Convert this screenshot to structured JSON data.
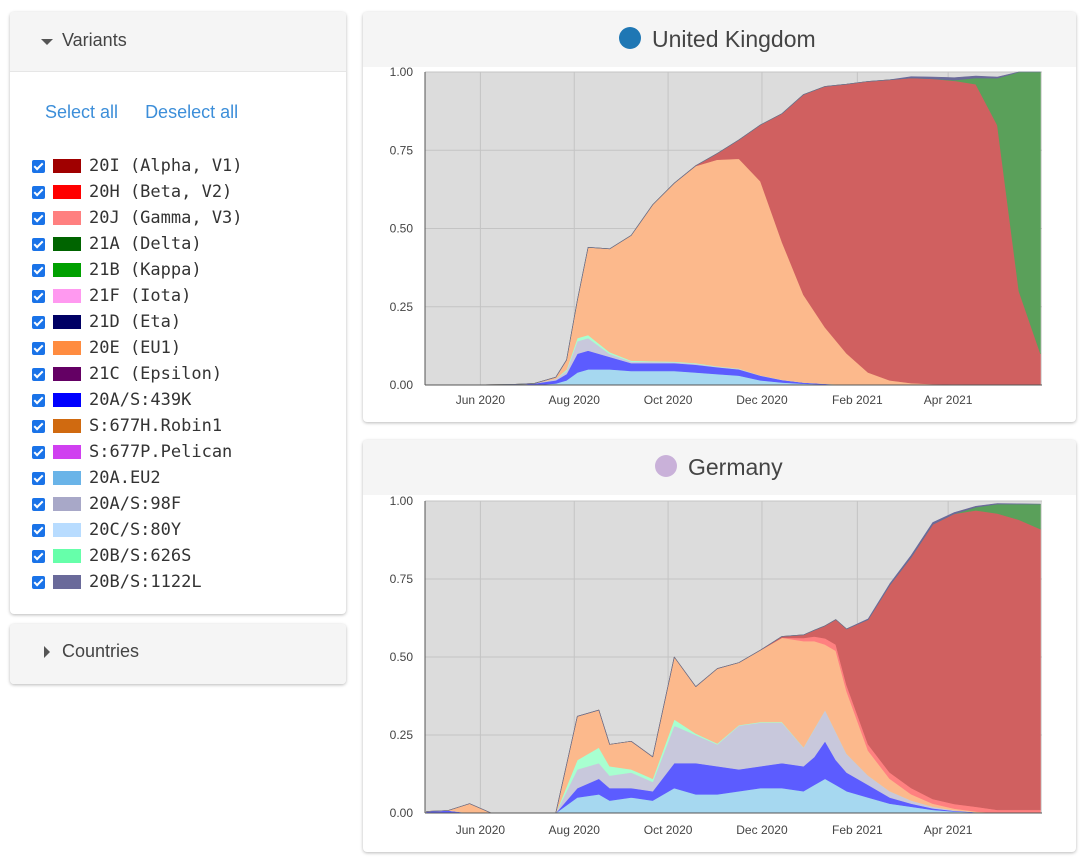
{
  "variants_panel": {
    "title": "Variants",
    "select_all": "Select all",
    "deselect_all": "Deselect all",
    "items": [
      {
        "label": "20I (Alpha, V1)",
        "color": "#a00000",
        "checked": true
      },
      {
        "label": "20H (Beta, V2)",
        "color": "#ff0000",
        "checked": true
      },
      {
        "label": "20J (Gamma, V3)",
        "color": "#ff8080",
        "checked": true
      },
      {
        "label": "21A (Delta)",
        "color": "#006400",
        "checked": true
      },
      {
        "label": "21B (Kappa)",
        "color": "#00a000",
        "checked": true
      },
      {
        "label": "21F (Iota)",
        "color": "#ff99f0",
        "checked": true
      },
      {
        "label": "21D (Eta)",
        "color": "#000064",
        "checked": true
      },
      {
        "label": "20E (EU1)",
        "color": "#ff8c40",
        "checked": true
      },
      {
        "label": "21C (Epsilon)",
        "color": "#640064",
        "checked": true
      },
      {
        "label": "20A/S:439K",
        "color": "#0000ff",
        "checked": true
      },
      {
        "label": "S:677H.Robin1",
        "color": "#d06a10",
        "checked": true
      },
      {
        "label": "S:677P.Pelican",
        "color": "#d040f0",
        "checked": true
      },
      {
        "label": "20A.EU2",
        "color": "#6ab4e8",
        "checked": true
      },
      {
        "label": "20A/S:98F",
        "color": "#a8a8c8",
        "checked": true
      },
      {
        "label": "20C/S:80Y",
        "color": "#b8dcff",
        "checked": true
      },
      {
        "label": "20B/S:626S",
        "color": "#66ffaa",
        "checked": true
      },
      {
        "label": "20B/S:1122L",
        "color": "#6a6a9a",
        "checked": true
      }
    ]
  },
  "countries_panel": {
    "title": "Countries"
  },
  "chart_data": [
    {
      "type": "area",
      "title": "United Kingdom",
      "title_dot_color": "#1f77b4",
      "xlabel": "",
      "ylabel": "",
      "ylim": [
        0,
        1
      ],
      "yticks": [
        "0.00",
        "0.25",
        "0.50",
        "0.75",
        "1.00"
      ],
      "xtick_labels": [
        "Jun 2020",
        "Aug 2020",
        "Oct 2020",
        "Dec 2020",
        "Feb 2021",
        "Apr 2021"
      ],
      "grid": true,
      "x": [
        "2020-04-27",
        "2020-05-25",
        "2020-06-22",
        "2020-07-06",
        "2020-07-20",
        "2020-07-27",
        "2020-08-03",
        "2020-08-10",
        "2020-08-24",
        "2020-09-07",
        "2020-09-21",
        "2020-10-05",
        "2020-10-19",
        "2020-11-02",
        "2020-11-16",
        "2020-11-30",
        "2020-12-14",
        "2020-12-28",
        "2021-01-11",
        "2021-01-25",
        "2021-02-08",
        "2021-02-22",
        "2021-03-08",
        "2021-03-22",
        "2021-04-05",
        "2021-04-19",
        "2021-05-03",
        "2021-05-17",
        "2021-05-31"
      ],
      "series": [
        {
          "name": "20A.EU2",
          "color": "#a6d8f0",
          "values": [
            0,
            0,
            0,
            0,
            0.005,
            0.015,
            0.04,
            0.05,
            0.05,
            0.045,
            0.045,
            0.045,
            0.04,
            0.035,
            0.03,
            0.015,
            0.008,
            0.004,
            0.002,
            0,
            0,
            0,
            0,
            0,
            0,
            0,
            0,
            0,
            0
          ]
        },
        {
          "name": "20A/S:439K",
          "color": "#5c5cff",
          "values": [
            0,
            0,
            0.002,
            0.005,
            0.01,
            0.02,
            0.06,
            0.06,
            0.04,
            0.025,
            0.025,
            0.025,
            0.025,
            0.022,
            0.02,
            0.015,
            0.008,
            0.004,
            0.002,
            0.001,
            0,
            0,
            0,
            0,
            0,
            0,
            0,
            0,
            0
          ]
        },
        {
          "name": "20A/S:98F",
          "color": "#c8c8dc",
          "values": [
            0,
            0,
            0,
            0,
            0.005,
            0.01,
            0.04,
            0.04,
            0.01,
            0.005,
            0.004,
            0.003,
            0.003,
            0.002,
            0.002,
            0.001,
            0.001,
            0,
            0,
            0,
            0,
            0,
            0,
            0,
            0,
            0,
            0,
            0,
            0
          ]
        },
        {
          "name": "20B/S:626S",
          "color": "#a8ffd0",
          "values": [
            0,
            0,
            0,
            0,
            0,
            0.005,
            0.01,
            0.01,
            0.005,
            0.003,
            0.002,
            0.002,
            0.002,
            0.001,
            0.001,
            0,
            0,
            0,
            0,
            0,
            0,
            0,
            0,
            0,
            0,
            0,
            0,
            0,
            0
          ]
        },
        {
          "name": "20E (EU1)",
          "color": "#fcb98c",
          "values": [
            0,
            0,
            0,
            0,
            0.005,
            0.03,
            0.12,
            0.28,
            0.33,
            0.4,
            0.5,
            0.57,
            0.63,
            0.66,
            0.67,
            0.62,
            0.44,
            0.28,
            0.18,
            0.1,
            0.04,
            0.015,
            0.006,
            0.003,
            0.002,
            0.001,
            0,
            0,
            0
          ]
        },
        {
          "name": "20I (Alpha, V1)",
          "color": "#d06060",
          "values": [
            0,
            0,
            0,
            0,
            0,
            0,
            0,
            0,
            0,
            0,
            0,
            0,
            0.001,
            0.02,
            0.06,
            0.18,
            0.41,
            0.64,
            0.77,
            0.86,
            0.93,
            0.96,
            0.975,
            0.975,
            0.97,
            0.96,
            0.83,
            0.3,
            0.1
          ]
        },
        {
          "name": "21A (Delta)",
          "color": "#5aa05a",
          "values": [
            0,
            0,
            0,
            0,
            0,
            0,
            0,
            0,
            0,
            0,
            0,
            0,
            0,
            0,
            0,
            0,
            0,
            0,
            0,
            0,
            0,
            0,
            0,
            0,
            0.002,
            0.02,
            0.15,
            0.7,
            0.9
          ]
        },
        {
          "name": "20B/S:1122L",
          "color": "#6a6a9a",
          "values": [
            0,
            0,
            0,
            0,
            0,
            0,
            0,
            0,
            0,
            0,
            0,
            0,
            0,
            0,
            0,
            0,
            0,
            0,
            0,
            0,
            0,
            0,
            0.004,
            0.006,
            0.008,
            0.006,
            0.004,
            0.002,
            0
          ]
        }
      ]
    },
    {
      "type": "area",
      "title": "Germany",
      "title_dot_color": "#c9b1d9",
      "xlabel": "",
      "ylabel": "",
      "ylim": [
        0,
        1
      ],
      "yticks": [
        "0.00",
        "0.25",
        "0.50",
        "0.75",
        "1.00"
      ],
      "xtick_labels": [
        "Jun 2020",
        "Aug 2020",
        "Oct 2020",
        "Dec 2020",
        "Feb 2021",
        "Apr 2021"
      ],
      "grid": true,
      "x": [
        "2020-04-27",
        "2020-05-11",
        "2020-05-25",
        "2020-06-08",
        "2020-06-22",
        "2020-07-06",
        "2020-07-20",
        "2020-08-03",
        "2020-08-17",
        "2020-08-24",
        "2020-09-07",
        "2020-09-21",
        "2020-10-05",
        "2020-10-19",
        "2020-11-02",
        "2020-11-16",
        "2020-11-30",
        "2020-12-14",
        "2020-12-28",
        "2021-01-04",
        "2021-01-11",
        "2021-01-18",
        "2021-01-25",
        "2021-02-08",
        "2021-02-22",
        "2021-03-08",
        "2021-03-22",
        "2021-04-05",
        "2021-04-19",
        "2021-05-03",
        "2021-05-17",
        "2021-05-31"
      ],
      "series": [
        {
          "name": "20A.EU2",
          "color": "#a6d8f0",
          "values": [
            0,
            0,
            0,
            0,
            0,
            0,
            0,
            0.05,
            0.06,
            0.04,
            0.05,
            0.04,
            0.08,
            0.06,
            0.06,
            0.07,
            0.08,
            0.08,
            0.07,
            0.09,
            0.11,
            0.09,
            0.07,
            0.05,
            0.03,
            0.02,
            0.01,
            0.005,
            0.002,
            0,
            0,
            0
          ]
        },
        {
          "name": "20A/S:439K",
          "color": "#5c5cff",
          "values": [
            0.005,
            0.008,
            0,
            0,
            0,
            0,
            0,
            0.03,
            0.05,
            0.04,
            0.03,
            0.03,
            0.08,
            0.1,
            0.09,
            0.07,
            0.07,
            0.08,
            0.08,
            0.09,
            0.12,
            0.08,
            0.06,
            0.04,
            0.02,
            0.01,
            0.005,
            0.002,
            0.001,
            0,
            0,
            0
          ]
        },
        {
          "name": "20A/S:98F",
          "color": "#c8c8dc",
          "values": [
            0,
            0,
            0,
            0,
            0,
            0,
            0,
            0.06,
            0.05,
            0.04,
            0.05,
            0.03,
            0.12,
            0.09,
            0.07,
            0.14,
            0.14,
            0.13,
            0.06,
            0.09,
            0.1,
            0.09,
            0.06,
            0.03,
            0.02,
            0.01,
            0.005,
            0.002,
            0,
            0,
            0,
            0
          ]
        },
        {
          "name": "20B/S:626S",
          "color": "#a8ffd0",
          "values": [
            0,
            0,
            0,
            0,
            0,
            0,
            0,
            0.03,
            0.05,
            0.03,
            0.01,
            0.01,
            0.02,
            0.005,
            0.003,
            0.002,
            0.002,
            0.002,
            0.001,
            0.001,
            0,
            0,
            0,
            0,
            0,
            0,
            0,
            0,
            0,
            0,
            0,
            0
          ]
        },
        {
          "name": "20E (EU1)",
          "color": "#fcb98c",
          "values": [
            0,
            0,
            0.03,
            0,
            0,
            0,
            0,
            0.14,
            0.12,
            0.07,
            0.09,
            0.07,
            0.2,
            0.15,
            0.24,
            0.2,
            0.23,
            0.27,
            0.34,
            0.28,
            0.21,
            0.26,
            0.2,
            0.08,
            0.04,
            0.02,
            0.01,
            0.005,
            0.002,
            0,
            0,
            0
          ]
        },
        {
          "name": "20J (Gamma, V3)",
          "color": "#ff8080",
          "values": [
            0,
            0,
            0,
            0,
            0,
            0,
            0,
            0,
            0,
            0,
            0,
            0,
            0,
            0,
            0,
            0,
            0,
            0,
            0.01,
            0.015,
            0.02,
            0.02,
            0.02,
            0.02,
            0.02,
            0.02,
            0.015,
            0.015,
            0.015,
            0.01,
            0.01,
            0.01
          ]
        },
        {
          "name": "20I (Alpha, V1)",
          "color": "#d06060",
          "values": [
            0,
            0,
            0,
            0,
            0,
            0,
            0,
            0,
            0,
            0,
            0,
            0,
            0,
            0,
            0,
            0,
            0,
            0.004,
            0.01,
            0.02,
            0.04,
            0.08,
            0.18,
            0.4,
            0.6,
            0.74,
            0.88,
            0.93,
            0.95,
            0.95,
            0.93,
            0.9
          ]
        },
        {
          "name": "21A (Delta)",
          "color": "#5aa05a",
          "values": [
            0,
            0,
            0,
            0,
            0,
            0,
            0,
            0,
            0,
            0,
            0,
            0,
            0,
            0,
            0,
            0,
            0,
            0,
            0,
            0,
            0,
            0,
            0,
            0,
            0,
            0,
            0,
            0,
            0.01,
            0.03,
            0.05,
            0.08
          ]
        },
        {
          "name": "20B/S:1122L",
          "color": "#6a6a9a",
          "values": [
            0,
            0,
            0,
            0,
            0,
            0,
            0,
            0,
            0,
            0,
            0,
            0,
            0,
            0,
            0,
            0,
            0,
            0,
            0,
            0,
            0,
            0,
            0,
            0.002,
            0.004,
            0.006,
            0.006,
            0.004,
            0.003,
            0.002,
            0.001,
            0
          ]
        }
      ]
    }
  ]
}
